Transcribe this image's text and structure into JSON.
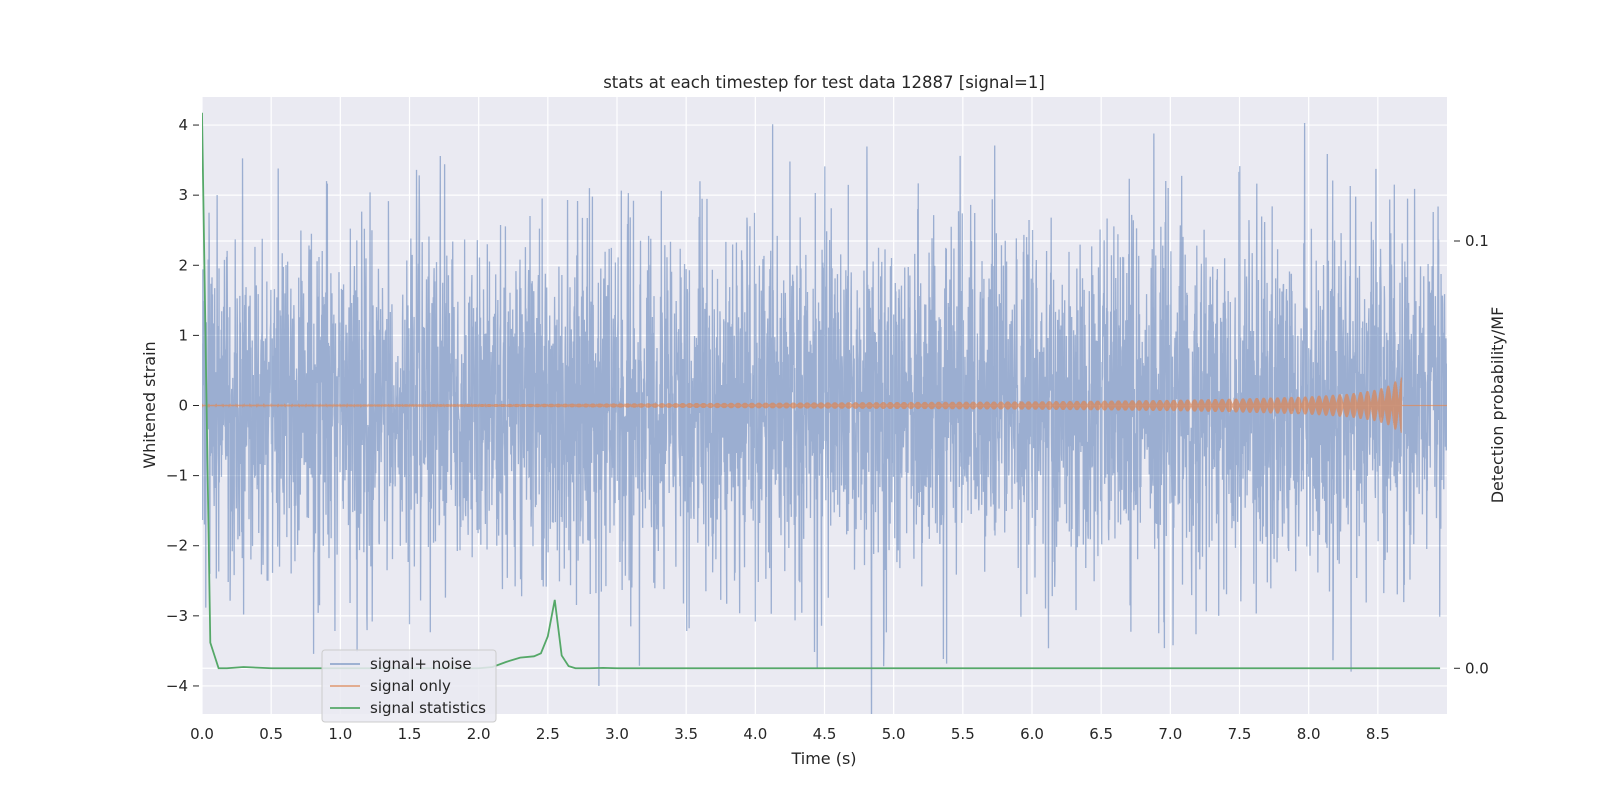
{
  "chart_data": {
    "type": "line",
    "title": "stats at each timestep for test data 12887 [signal=1]",
    "xlabel": "Time (s)",
    "ylabel": "Whitened strain",
    "y2label": "Detection probability/MF",
    "xlim": [
      0,
      9.0
    ],
    "ylim": [
      -4.4,
      4.4
    ],
    "y2lim": [
      -0.0107,
      0.1337
    ],
    "xticks": [
      0.0,
      0.5,
      1.0,
      1.5,
      2.0,
      2.5,
      3.0,
      3.5,
      4.0,
      4.5,
      5.0,
      5.5,
      6.0,
      6.5,
      7.0,
      7.5,
      8.0,
      8.5
    ],
    "xtick_labels": [
      "0.0",
      "0.5",
      "1.0",
      "1.5",
      "2.0",
      "2.5",
      "3.0",
      "3.5",
      "4.0",
      "4.5",
      "5.0",
      "5.5",
      "6.0",
      "6.5",
      "7.0",
      "7.5",
      "8.0",
      "8.5"
    ],
    "yticks": [
      -4,
      -3,
      -2,
      -1,
      0,
      1,
      2,
      3,
      4
    ],
    "ytick_labels": [
      "−4",
      "−3",
      "−2",
      "−1",
      "0",
      "1",
      "2",
      "3",
      "4"
    ],
    "y2ticks": [
      0.0,
      0.1
    ],
    "y2tick_labels": [
      "0.0",
      "0.1"
    ],
    "grid": true,
    "legend_position": "lower-left",
    "series": [
      {
        "name": "signal+ noise",
        "axis": "left",
        "color": "#4c72b0",
        "kind": "noise",
        "sample_rate_hz": 512,
        "core_amplitude": 1.9,
        "peaks_positive": [
          [
            0.05,
            2.75
          ],
          [
            0.55,
            3.38
          ],
          [
            0.9,
            3.2
          ],
          [
            1.55,
            3.36
          ],
          [
            2.8,
            3.1
          ],
          [
            3.12,
            2.92
          ],
          [
            4.25,
            3.48
          ],
          [
            5.48,
            3.56
          ],
          [
            6.88,
            3.88
          ],
          [
            7.97,
            4.03
          ],
          [
            8.3,
            3.13
          ],
          [
            8.62,
            3.15
          ]
        ],
        "peaks_negative": [
          [
            0.3,
            -2.98
          ],
          [
            1.23,
            -3.08
          ],
          [
            1.5,
            -3.12
          ],
          [
            2.87,
            -4.0
          ],
          [
            3.1,
            -3.15
          ],
          [
            4.0,
            -3.08
          ],
          [
            4.93,
            -3.38
          ],
          [
            7.02,
            -3.42
          ],
          [
            7.35,
            -3.0
          ]
        ]
      },
      {
        "name": "signal only",
        "axis": "left",
        "color": "#dd8452",
        "kind": "chirp",
        "merger_time": 8.67,
        "peak_amplitude": 0.42,
        "x": [
          0.0,
          2.0,
          3.0,
          4.0,
          5.0,
          6.0,
          7.0,
          7.5,
          8.0,
          8.3,
          8.5,
          8.6,
          8.67
        ],
        "envelope": [
          0.01,
          0.02,
          0.03,
          0.04,
          0.05,
          0.06,
          0.08,
          0.1,
          0.13,
          0.17,
          0.23,
          0.3,
          0.42
        ]
      },
      {
        "name": "signal statistics",
        "axis": "right",
        "color": "#55a868",
        "kind": "line",
        "x": [
          0.0,
          0.06,
          0.12,
          0.18,
          0.3,
          0.5,
          1.0,
          1.5,
          2.0,
          2.1,
          2.2,
          2.3,
          2.4,
          2.45,
          2.5,
          2.55,
          2.6,
          2.65,
          2.7,
          2.8,
          2.9,
          3.0,
          4.0,
          5.0,
          6.0,
          7.0,
          8.0,
          8.95
        ],
        "y": [
          0.13,
          0.006,
          0.0,
          0.0,
          0.0003,
          0.0,
          0.0,
          0.0,
          0.0,
          0.0003,
          0.0015,
          0.0025,
          0.0028,
          0.0035,
          0.0075,
          0.016,
          0.003,
          0.0005,
          0.0,
          0.0,
          0.0001,
          0.0,
          0.0,
          0.0,
          0.0,
          0.0,
          0.0,
          0.0
        ]
      }
    ]
  }
}
